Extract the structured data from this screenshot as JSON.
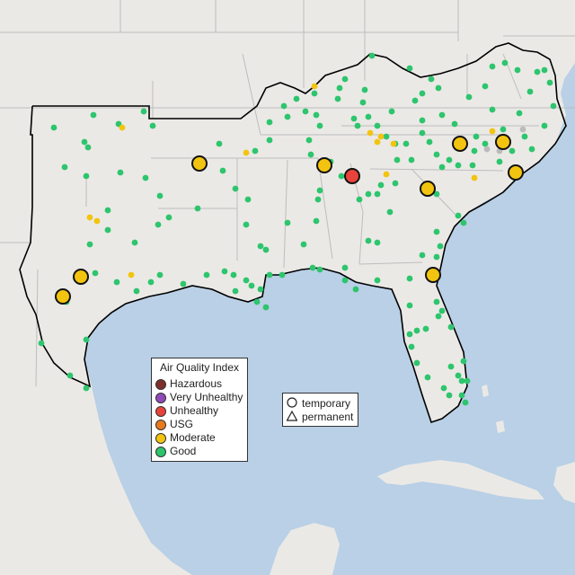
{
  "legend": {
    "title": "Air Quality Index",
    "items": [
      {
        "key": "hazardous",
        "label": "Hazardous",
        "color": "#7e2f2c"
      },
      {
        "key": "very_unhealthy",
        "label": "Very Unhealthy",
        "color": "#8f4bb8"
      },
      {
        "key": "unhealthy",
        "label": "Unhealthy",
        "color": "#e8433a"
      },
      {
        "key": "usg",
        "label": "USG",
        "color": "#e87a1e"
      },
      {
        "key": "moderate",
        "label": "Moderate",
        "color": "#f2c40f"
      },
      {
        "key": "good",
        "label": "Good",
        "color": "#2dc56d"
      }
    ]
  },
  "shape_legend": {
    "items": [
      {
        "key": "temporary",
        "label": "temporary",
        "icon": "circle-icon"
      },
      {
        "key": "permanent",
        "label": "permanent",
        "icon": "triangle-icon"
      }
    ]
  },
  "colors": {
    "water": "#b9d0e6",
    "land": "#ebe9e6",
    "border": "#bdbdbd",
    "region_outline": "#000000",
    "no_data": "#bbbbbb"
  },
  "map_data": {
    "type": "air-quality-monitor-map",
    "monitors_large": [
      {
        "category": "moderate"
      },
      {
        "category": "moderate"
      },
      {
        "category": "unhealthy"
      },
      {
        "category": "moderate"
      },
      {
        "category": "moderate"
      },
      {
        "category": "moderate"
      },
      {
        "category": "moderate"
      },
      {
        "category": "moderate"
      },
      {
        "category": "moderate"
      },
      {
        "category": "moderate"
      }
    ]
  }
}
